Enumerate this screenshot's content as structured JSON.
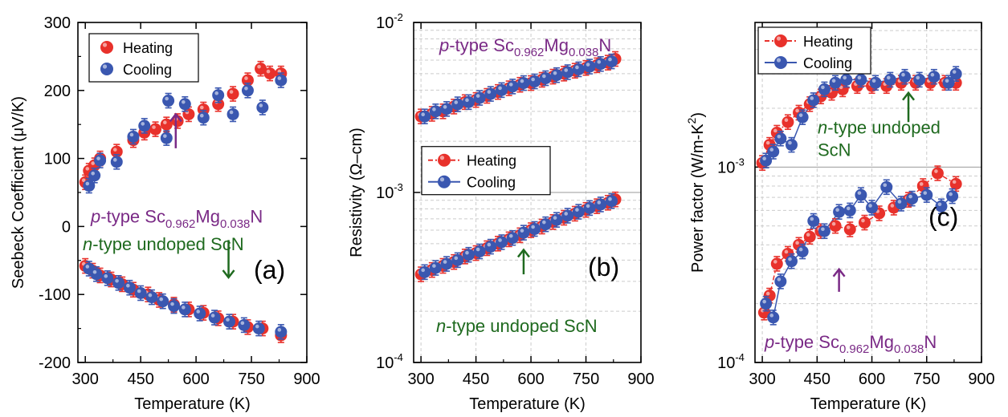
{
  "figure": {
    "colors": {
      "heating": "#e8312b",
      "cooling": "#3a57b0",
      "p_label": "#7a2a86",
      "n_label": "#1f6a1f",
      "axis": "#000000",
      "grid": "#cccccc"
    }
  },
  "chart_data": [
    {
      "type": "scatter",
      "panel_label": "(a)",
      "xlabel": "Temperature  (K)",
      "ylabel": "Seebeck Coefficient (μV/K)",
      "xlim": [
        280,
        900
      ],
      "ylim": [
        -200,
        300
      ],
      "y_scale": "linear",
      "xticks": [
        300,
        450,
        600,
        750,
        900
      ],
      "yticks": [
        -200,
        -100,
        0,
        100,
        200,
        300
      ],
      "grid": false,
      "legend": {
        "placement": "top-left",
        "entries": [
          "Heating",
          "Cooling"
        ],
        "style": "markers"
      },
      "annotations": [
        {
          "prefix": "p",
          "text": "-type Sc",
          "sub": "0.962",
          "mid": "Mg",
          "sub2": "0.038",
          "suffix": "N",
          "color": "p_label"
        },
        {
          "prefix": "n",
          "text": "-type undoped ScN",
          "color": "n_label"
        }
      ],
      "arrows": [
        {
          "x": 545,
          "y_from": 115,
          "y_to": 165,
          "direction": "up",
          "color": "p_label"
        },
        {
          "x": 688,
          "y_from": -20,
          "y_to": -75,
          "direction": "down",
          "color": "n_label"
        }
      ],
      "series": [
        {
          "name": "Heating",
          "group": "p-type",
          "x": [
            300,
            310,
            325,
            340,
            385,
            430,
            460,
            490,
            520,
            550,
            580,
            620,
            660,
            700,
            740,
            775,
            800,
            830
          ],
          "y": [
            65,
            82,
            90,
            100,
            110,
            127,
            138,
            143,
            150,
            155,
            165,
            172,
            180,
            195,
            215,
            232,
            225,
            225
          ]
        },
        {
          "name": "Cooling",
          "group": "p-type",
          "x": [
            310,
            325,
            340,
            385,
            430,
            460,
            520,
            525,
            570,
            620,
            660,
            700,
            740,
            780,
            830
          ],
          "y": [
            60,
            75,
            97,
            95,
            132,
            148,
            130,
            185,
            180,
            160,
            193,
            165,
            200,
            175,
            215
          ]
        },
        {
          "name": "Heating",
          "group": "n-type",
          "x": [
            300,
            320,
            340,
            370,
            400,
            430,
            470,
            500,
            540,
            580,
            620,
            660,
            700,
            740,
            780,
            830
          ],
          "y": [
            -58,
            -65,
            -72,
            -78,
            -85,
            -93,
            -100,
            -108,
            -115,
            -122,
            -127,
            -135,
            -140,
            -148,
            -150,
            -160
          ]
        },
        {
          "name": "Cooling",
          "group": "n-type",
          "x": [
            310,
            330,
            360,
            390,
            420,
            450,
            480,
            510,
            540,
            570,
            610,
            650,
            690,
            730,
            770,
            830
          ],
          "y": [
            -62,
            -70,
            -76,
            -83,
            -90,
            -98,
            -104,
            -110,
            -117,
            -122,
            -128,
            -134,
            -140,
            -145,
            -150,
            -155
          ]
        }
      ]
    },
    {
      "type": "scatter",
      "panel_label": "(b)",
      "xlabel": "Temperature  (K)",
      "ylabel": "Resistivity (Ω–cm)",
      "xlim": [
        280,
        900
      ],
      "ylim": [
        0.0001,
        0.01
      ],
      "y_scale": "log",
      "xticks": [
        300,
        450,
        600,
        750,
        900
      ],
      "ytick_labels": [
        {
          "value": 0.0001,
          "base": "10",
          "exp": "-4"
        },
        {
          "value": 0.001,
          "base": "10",
          "exp": "-3"
        },
        {
          "value": 0.01,
          "base": "10",
          "exp": "-2"
        }
      ],
      "grid": true,
      "legend": {
        "placement": "center-left",
        "entries": [
          "Heating",
          "Cooling"
        ],
        "style": "line-markers"
      },
      "annotations": [
        {
          "prefix": "p",
          "text": "-type Sc",
          "sub": "0.962",
          "mid": "Mg",
          "sub2": "0.038",
          "suffix": "N",
          "color": "p_label"
        },
        {
          "prefix": "n",
          "text": "-type undoped ScN",
          "color": "n_label"
        }
      ],
      "arrows": [
        {
          "x": 580,
          "y_from": 0.00033,
          "y_to": 0.00046,
          "direction": "up",
          "color": "n_label"
        }
      ],
      "series": [
        {
          "name": "Heating",
          "group": "p-type",
          "x": [
            300,
            330,
            360,
            390,
            420,
            450,
            480,
            510,
            540,
            570,
            600,
            630,
            660,
            690,
            720,
            750,
            780,
            810,
            830
          ],
          "y": [
            0.0028,
            0.0029,
            0.003,
            0.0032,
            0.0034,
            0.0035,
            0.0037,
            0.0039,
            0.0041,
            0.0043,
            0.0044,
            0.0046,
            0.0048,
            0.005,
            0.0052,
            0.0054,
            0.0056,
            0.0058,
            0.0061
          ]
        },
        {
          "name": "Cooling",
          "group": "p-type",
          "x": [
            310,
            340,
            370,
            400,
            430,
            460,
            490,
            520,
            550,
            580,
            610,
            640,
            670,
            700,
            730,
            760,
            790,
            820
          ],
          "y": [
            0.0028,
            0.003,
            0.0031,
            0.0033,
            0.0034,
            0.0036,
            0.0038,
            0.004,
            0.0042,
            0.0044,
            0.0045,
            0.0047,
            0.0049,
            0.0051,
            0.0053,
            0.0055,
            0.0057,
            0.0059
          ]
        },
        {
          "name": "Heating",
          "group": "n-type",
          "x": [
            300,
            330,
            360,
            390,
            420,
            450,
            480,
            510,
            540,
            570,
            600,
            630,
            660,
            690,
            720,
            750,
            780,
            810,
            830
          ],
          "y": [
            0.00033,
            0.00035,
            0.00037,
            0.00039,
            0.00042,
            0.00044,
            0.00047,
            0.0005,
            0.00053,
            0.00056,
            0.0006,
            0.00063,
            0.00067,
            0.00071,
            0.00075,
            0.00079,
            0.00083,
            0.00087,
            0.00091
          ]
        },
        {
          "name": "Cooling",
          "group": "n-type",
          "x": [
            310,
            340,
            370,
            400,
            430,
            460,
            490,
            520,
            550,
            580,
            610,
            640,
            670,
            700,
            730,
            760,
            790,
            820
          ],
          "y": [
            0.00034,
            0.00036,
            0.00038,
            0.0004,
            0.00043,
            0.00045,
            0.00048,
            0.00051,
            0.00054,
            0.00058,
            0.00061,
            0.00065,
            0.00069,
            0.00073,
            0.00077,
            0.00081,
            0.00085,
            0.00089
          ]
        }
      ]
    },
    {
      "type": "scatter",
      "panel_label": "(c)",
      "xlabel": "Temperature  (K)",
      "ylabel": "Power factor (W/m-K",
      "ylabel_sup": "2",
      "ylabel_end": ")",
      "xlim": [
        280,
        900
      ],
      "ylim": [
        0.0001,
        0.0055
      ],
      "y_scale": "log",
      "xticks": [
        300,
        450,
        600,
        750,
        900
      ],
      "ytick_labels": [
        {
          "value": 0.0001,
          "base": "10",
          "exp": "-4"
        },
        {
          "value": 0.001,
          "base": "10",
          "exp": "-3"
        }
      ],
      "grid": true,
      "legend": {
        "placement": "top-left",
        "entries": [
          "Heating",
          "Cooling"
        ],
        "style": "line-markers"
      },
      "annotations": [
        {
          "prefix": "n",
          "text": "-type undoped",
          "line2": "ScN",
          "color": "n_label"
        },
        {
          "prefix": "p",
          "text": "-type Sc",
          "sub": "0.962",
          "mid": "Mg",
          "sub2": "0.038",
          "suffix": "N",
          "color": "p_label"
        }
      ],
      "arrows": [
        {
          "x": 700,
          "y_from": 0.0017,
          "y_to": 0.0024,
          "direction": "up",
          "color": "n_label"
        },
        {
          "x": 510,
          "y_from": 0.00023,
          "y_to": 0.0003,
          "direction": "up",
          "color": "p_label"
        }
      ],
      "series": [
        {
          "name": "Heating",
          "group": "n-type",
          "x": [
            300,
            320,
            340,
            370,
            400,
            430,
            460,
            490,
            520,
            560,
            600,
            640,
            680,
            720,
            760,
            800,
            830
          ],
          "y": [
            0.00105,
            0.0013,
            0.0015,
            0.0017,
            0.0019,
            0.0021,
            0.0023,
            0.0024,
            0.0025,
            0.0026,
            0.0026,
            0.0026,
            0.0027,
            0.0027,
            0.0027,
            0.0027,
            0.0027
          ]
        },
        {
          "name": "Cooling",
          "group": "n-type",
          "x": [
            310,
            330,
            350,
            380,
            410,
            440,
            470,
            500,
            530,
            570,
            610,
            650,
            690,
            730,
            770,
            810,
            830
          ],
          "y": [
            0.00108,
            0.0012,
            0.0014,
            0.0013,
            0.0018,
            0.0022,
            0.0025,
            0.0027,
            0.0028,
            0.0028,
            0.0027,
            0.0028,
            0.0029,
            0.0028,
            0.0029,
            0.0027,
            0.003
          ]
        },
        {
          "name": "Heating",
          "group": "p-type",
          "x": [
            305,
            320,
            340,
            370,
            400,
            430,
            460,
            500,
            540,
            580,
            620,
            660,
            700,
            740,
            780,
            830
          ],
          "y": [
            0.00018,
            0.00022,
            0.00032,
            0.00036,
            0.0004,
            0.00044,
            0.00047,
            0.0005,
            0.00048,
            0.00052,
            0.00058,
            0.00062,
            0.00068,
            0.0008,
            0.00093,
            0.00082
          ]
        },
        {
          "name": "Cooling",
          "group": "p-type",
          "x": [
            310,
            330,
            350,
            380,
            410,
            440,
            470,
            510,
            540,
            570,
            600,
            640,
            680,
            710,
            750,
            790,
            820
          ],
          "y": [
            0.0002,
            0.00017,
            0.00026,
            0.00033,
            0.00037,
            0.00053,
            0.00047,
            0.00059,
            0.0006,
            0.00072,
            0.00062,
            0.00079,
            0.00065,
            0.00069,
            0.00072,
            0.00063,
            0.00071
          ]
        }
      ]
    }
  ]
}
